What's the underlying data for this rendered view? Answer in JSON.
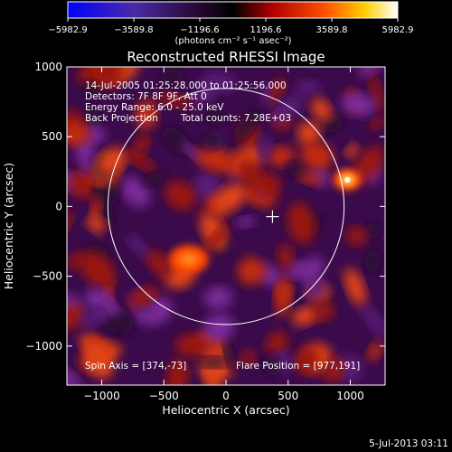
{
  "chart_data": {
    "type": "heatmap",
    "title": "Reconstructed RHESSI Image",
    "xlabel": "Heliocentric X (arcsec)",
    "ylabel": "Heliocentric Y (arcsec)",
    "xlim": [
      -1280,
      1280
    ],
    "ylim": [
      -1280,
      1000
    ],
    "x_ticks": [
      -1000,
      -500,
      0,
      500,
      1000
    ],
    "y_ticks": [
      -1000,
      -500,
      0,
      500,
      1000
    ],
    "x_tick_labels": [
      "−1000",
      "−500",
      "0",
      "500",
      "1000"
    ],
    "y_tick_labels": [
      "−1000",
      "−500",
      "0",
      "500",
      "1000"
    ],
    "colorbar": {
      "range": [
        -5982.9,
        5982.9
      ],
      "ticks": [
        -5982.9,
        -3589.8,
        -1196.6,
        1196.6,
        3589.8,
        5982.9
      ],
      "tick_labels": [
        "−5982.9",
        "−3589.8",
        "−1196.6",
        "1196.6",
        "3589.8",
        "5982.9"
      ],
      "unit_label": "(photons cm⁻² s⁻¹ asec⁻²)",
      "colors": [
        "#0000ff",
        "#5a1a8a",
        "#2a0a3a",
        "#000000",
        "#b20000",
        "#ff5000",
        "#ffd000",
        "#ffffff"
      ]
    },
    "annotations": {
      "time_range": "14-Jul-2005 01:25:28.000 to 01:25:56.000",
      "detectors": "Detectors: 7F 8F 9F, Att 0",
      "energy_range": "Energy Range: 6.0 - 25.0 keV",
      "method": "Back Projection",
      "total_counts": "Total counts: 7.28E+03",
      "spin_axis": "Spin Axis = [374,-73]",
      "flare_position": "Flare Position = [977,191]"
    },
    "solar_limb": {
      "center": [
        0,
        0
      ],
      "radius_arcsec": 950
    },
    "spin_axis_marker": [
      374,
      -73
    ],
    "bright_sources": [
      {
        "x": 977,
        "y": 191,
        "value": 5982.9
      },
      {
        "x": -300,
        "y": -380,
        "value": 4000
      }
    ]
  },
  "footer": {
    "timestamp": "5-Jul-2013 03:11"
  }
}
